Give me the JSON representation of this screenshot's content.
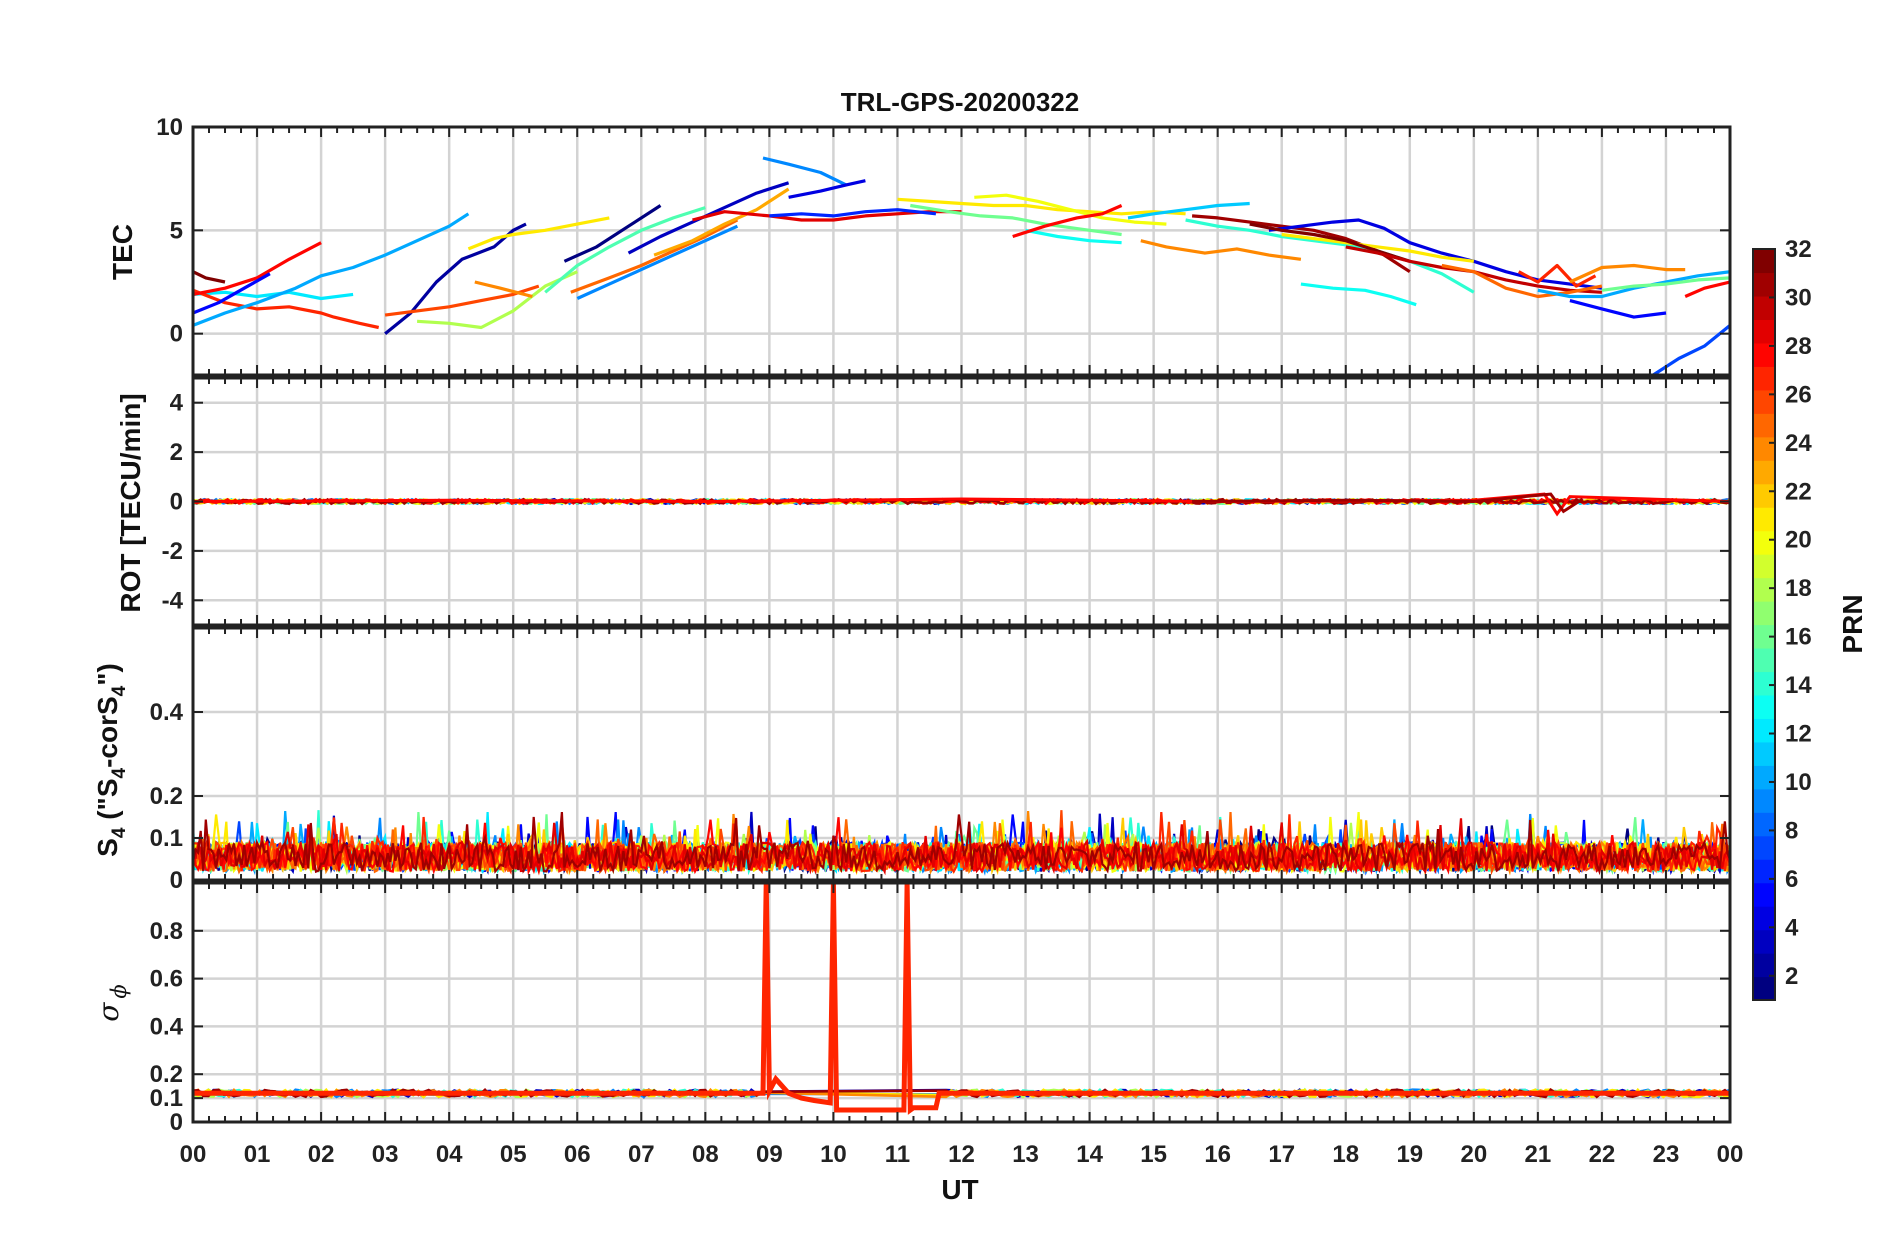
{
  "chart_data": {
    "title": "TRL-GPS-20200322",
    "xlabel": "UT",
    "x_tick_labels": [
      "00",
      "01",
      "02",
      "03",
      "04",
      "05",
      "06",
      "07",
      "08",
      "09",
      "10",
      "11",
      "12",
      "13",
      "14",
      "15",
      "16",
      "17",
      "18",
      "19",
      "20",
      "21",
      "22",
      "23",
      "00"
    ],
    "xlim": [
      0,
      24
    ],
    "colorbar": {
      "label": "PRN",
      "colormap": "jet",
      "range": [
        1,
        32
      ],
      "tick_labels": [
        "2",
        "4",
        "6",
        "8",
        "10",
        "12",
        "14",
        "16",
        "18",
        "20",
        "22",
        "24",
        "26",
        "28",
        "30",
        "32"
      ]
    },
    "panels": [
      {
        "type": "line",
        "ylabel": "TEC",
        "ylim": [
          -2,
          10
        ],
        "yticks": [
          0,
          5,
          10
        ],
        "series": [
          {
            "prn": 12,
            "x": [
              0.0,
              0.5,
              1.0,
              1.5,
              2.0,
              2.5
            ],
            "y": [
              1.9,
              2.0,
              1.8,
              2.0,
              1.7,
              1.9
            ]
          },
          {
            "prn": 27,
            "x": [
              0.0,
              0.5,
              1.0,
              1.5,
              2.0,
              2.2,
              2.6,
              2.9
            ],
            "y": [
              2.1,
              1.5,
              1.2,
              1.3,
              1.0,
              0.8,
              0.5,
              0.3
            ]
          },
          {
            "prn": 28,
            "x": [
              0.0,
              0.5,
              1.0,
              1.5,
              2.0
            ],
            "y": [
              1.9,
              2.2,
              2.7,
              3.6,
              4.4
            ]
          },
          {
            "prn": 10,
            "x": [
              0.0,
              0.5,
              1.0,
              1.6,
              2.0,
              2.5,
              3.0,
              3.5,
              4.0,
              4.3
            ],
            "y": [
              0.4,
              1.0,
              1.5,
              2.2,
              2.8,
              3.2,
              3.8,
              4.5,
              5.2,
              5.8
            ]
          },
          {
            "prn": 5,
            "x": [
              0.0,
              0.4,
              0.8,
              1.2
            ],
            "y": [
              1.0,
              1.5,
              2.2,
              2.9
            ]
          },
          {
            "prn": 32,
            "x": [
              0.0,
              0.2,
              0.5
            ],
            "y": [
              3.0,
              2.7,
              2.5
            ]
          },
          {
            "prn": 2,
            "x": [
              3.0,
              3.4,
              3.8,
              4.2,
              4.7,
              5.0,
              5.2
            ],
            "y": [
              0.0,
              1.0,
              2.5,
              3.6,
              4.2,
              5.0,
              5.3
            ]
          },
          {
            "prn": 26,
            "x": [
              3.0,
              3.5,
              4.0,
              4.5,
              5.0,
              5.4
            ],
            "y": [
              0.9,
              1.1,
              1.3,
              1.6,
              1.9,
              2.3
            ]
          },
          {
            "prn": 18,
            "x": [
              3.5,
              4.0,
              4.5,
              5.0,
              5.5,
              6.0
            ],
            "y": [
              0.6,
              0.5,
              0.3,
              1.1,
              2.3,
              3.0
            ]
          },
          {
            "prn": 21,
            "x": [
              4.3,
              4.7,
              5.0,
              5.5,
              6.0,
              6.5
            ],
            "y": [
              4.1,
              4.6,
              4.8,
              5.0,
              5.3,
              5.6
            ]
          },
          {
            "prn": 24,
            "x": [
              4.4,
              4.8,
              5.3
            ],
            "y": [
              2.5,
              2.2,
              1.8
            ]
          },
          {
            "prn": 15,
            "x": [
              5.5,
              6.0,
              6.5,
              7.0,
              7.5,
              8.0
            ],
            "y": [
              2.0,
              3.3,
              4.2,
              5.0,
              5.6,
              6.1
            ]
          },
          {
            "prn": 1,
            "x": [
              5.8,
              6.3,
              6.8,
              7.3
            ],
            "y": [
              3.5,
              4.2,
              5.2,
              6.2
            ]
          },
          {
            "prn": 25,
            "x": [
              5.9,
              6.5,
              7.0,
              7.5,
              8.0,
              8.5
            ],
            "y": [
              2.0,
              2.7,
              3.3,
              4.0,
              4.7,
              5.5
            ]
          },
          {
            "prn": 9,
            "x": [
              6.0,
              6.5,
              7.0,
              7.5,
              8.0,
              8.5
            ],
            "y": [
              1.7,
              2.4,
              3.1,
              3.8,
              4.5,
              5.2
            ]
          },
          {
            "prn": 3,
            "x": [
              6.8,
              7.3,
              7.8,
              8.3,
              8.8,
              9.3
            ],
            "y": [
              3.9,
              4.7,
              5.4,
              6.1,
              6.8,
              7.3
            ]
          },
          {
            "prn": 23,
            "x": [
              7.2,
              7.8,
              8.3,
              8.8,
              9.3
            ],
            "y": [
              3.8,
              4.5,
              5.3,
              6.0,
              7.0
            ]
          },
          {
            "prn": 29,
            "x": [
              7.8,
              8.3,
              9.0,
              9.5,
              10.0,
              10.5,
              11.0,
              11.5,
              12.0
            ],
            "y": [
              5.5,
              5.9,
              5.7,
              5.5,
              5.5,
              5.7,
              5.8,
              5.9,
              5.9
            ]
          },
          {
            "prn": 9,
            "x": [
              8.9,
              9.3,
              9.8,
              10.2
            ],
            "y": [
              8.5,
              8.2,
              7.8,
              7.2
            ]
          },
          {
            "prn": 4,
            "x": [
              9.3,
              9.8,
              10.2,
              10.5
            ],
            "y": [
              6.6,
              6.9,
              7.2,
              7.4
            ]
          },
          {
            "prn": 6,
            "x": [
              9.0,
              9.5,
              10.0,
              10.5,
              11.0,
              11.6
            ],
            "y": [
              5.7,
              5.8,
              5.7,
              5.9,
              6.0,
              5.8
            ]
          },
          {
            "prn": 21,
            "x": [
              11.0,
              11.5,
              12.0,
              12.5,
              13.0,
              13.5,
              14.0,
              14.5,
              15.0,
              15.5
            ],
            "y": [
              6.5,
              6.4,
              6.3,
              6.2,
              6.2,
              6.0,
              5.9,
              5.8,
              5.9,
              5.8
            ]
          },
          {
            "prn": 16,
            "x": [
              11.2,
              11.8,
              12.3,
              12.8,
              13.3,
              14.0,
              14.5
            ],
            "y": [
              6.2,
              5.9,
              5.7,
              5.6,
              5.3,
              5.0,
              4.8
            ]
          },
          {
            "prn": 20,
            "x": [
              12.2,
              12.7,
              13.2,
              13.7,
              14.2,
              14.7,
              15.2
            ],
            "y": [
              6.6,
              6.7,
              6.4,
              6.0,
              5.6,
              5.4,
              5.3
            ]
          },
          {
            "prn": 13,
            "x": [
              13.0,
              13.5,
              14.0,
              14.5
            ],
            "y": [
              5.0,
              4.7,
              4.5,
              4.4
            ]
          },
          {
            "prn": 28,
            "x": [
              12.8,
              13.3,
              13.8,
              14.2,
              14.5
            ],
            "y": [
              4.7,
              5.2,
              5.6,
              5.8,
              6.2
            ]
          },
          {
            "prn": 11,
            "x": [
              14.6,
              15.0,
              15.5,
              16.0,
              16.5
            ],
            "y": [
              5.6,
              5.8,
              6.0,
              6.2,
              6.3
            ]
          },
          {
            "prn": 24,
            "x": [
              14.8,
              15.2,
              15.8,
              16.3,
              16.8,
              17.3
            ],
            "y": [
              4.5,
              4.2,
              3.9,
              4.1,
              3.8,
              3.6
            ]
          },
          {
            "prn": 31,
            "x": [
              15.6,
              16.0,
              16.5,
              17.0,
              17.5,
              18.0,
              18.5,
              19.0
            ],
            "y": [
              5.7,
              5.6,
              5.4,
              5.2,
              5.0,
              4.6,
              4.0,
              3.0
            ]
          },
          {
            "prn": 14,
            "x": [
              15.5,
              16.0,
              16.5,
              17.0,
              17.5,
              18.0,
              18.5,
              19.0,
              19.5,
              20.0
            ],
            "y": [
              5.5,
              5.2,
              5.0,
              4.7,
              4.5,
              4.3,
              4.0,
              3.5,
              2.9,
              2.0
            ]
          },
          {
            "prn": 4,
            "x": [
              16.8,
              17.3,
              17.8,
              18.2,
              18.6,
              19.0,
              19.5,
              20.0,
              20.5,
              21.0,
              21.5,
              22.0
            ],
            "y": [
              5.0,
              5.2,
              5.4,
              5.5,
              5.1,
              4.4,
              3.9,
              3.5,
              3.0,
              2.6,
              2.4,
              2.2
            ]
          },
          {
            "prn": 21,
            "x": [
              17.0,
              17.5,
              18.0,
              18.5,
              19.0,
              19.5,
              20.0
            ],
            "y": [
              4.8,
              4.6,
              4.4,
              4.2,
              4.0,
              3.7,
              3.5
            ]
          },
          {
            "prn": 32,
            "x": [
              16.5,
              17.0,
              17.5,
              18.0,
              18.5,
              19.0
            ],
            "y": [
              5.3,
              5.0,
              4.8,
              4.5,
              4.0,
              3.5
            ]
          },
          {
            "prn": 13,
            "x": [
              17.3,
              17.8,
              18.3,
              18.7,
              19.1
            ],
            "y": [
              2.4,
              2.2,
              2.1,
              1.8,
              1.4
            ]
          },
          {
            "prn": 30,
            "x": [
              18.0,
              18.5,
              19.0,
              19.5,
              20.0,
              20.5,
              21.0,
              21.5,
              22.0
            ],
            "y": [
              4.2,
              3.9,
              3.5,
              3.2,
              3.0,
              2.6,
              2.3,
              2.1,
              2.0
            ]
          },
          {
            "prn": 25,
            "x": [
              19.5,
              20.0,
              20.5,
              21.0,
              21.5,
              22.0
            ],
            "y": [
              3.3,
              3.0,
              2.2,
              1.8,
              2.0,
              2.3
            ]
          },
          {
            "prn": 27,
            "x": [
              20.7,
              21.0,
              21.3,
              21.6,
              21.9
            ],
            "y": [
              3.0,
              2.5,
              3.3,
              2.3,
              2.8
            ]
          },
          {
            "prn": 5,
            "x": [
              21.5,
              22.0,
              22.5,
              23.0
            ],
            "y": [
              1.6,
              1.2,
              0.8,
              1.0
            ]
          },
          {
            "prn": 10,
            "x": [
              21.0,
              21.5,
              22.0,
              22.5,
              23.0,
              23.5,
              24.0
            ],
            "y": [
              2.1,
              1.8,
              1.8,
              2.2,
              2.5,
              2.8,
              3.0
            ]
          },
          {
            "prn": 24,
            "x": [
              21.5,
              22.0,
              22.5,
              23.0,
              23.3
            ],
            "y": [
              2.5,
              3.2,
              3.3,
              3.1,
              3.1
            ]
          },
          {
            "prn": 16,
            "x": [
              22.0,
              22.5,
              23.0,
              23.5,
              24.0
            ],
            "y": [
              2.1,
              2.3,
              2.4,
              2.6,
              2.7
            ]
          },
          {
            "prn": 28,
            "x": [
              23.3,
              23.6,
              24.0
            ],
            "y": [
              1.8,
              2.2,
              2.5
            ]
          },
          {
            "prn": 7,
            "x": [
              22.8,
              23.2,
              23.6,
              24.0
            ],
            "y": [
              -2.0,
              -1.2,
              -0.6,
              0.4
            ]
          }
        ]
      },
      {
        "type": "line",
        "ylabel": "ROT [TECU/min]",
        "ylim": [
          -5,
          5
        ],
        "yticks": [
          -4,
          -2,
          0,
          2,
          4
        ],
        "description_note": "all satellites near 0 TECU/min, small spike near 21.3 UT",
        "series": [
          {
            "prn": 28,
            "x": [
              0,
              4,
              8,
              12,
              16,
              20,
              21.1,
              21.3,
              21.5,
              24
            ],
            "y": [
              0.0,
              0.05,
              0.0,
              0.1,
              0.0,
              0.05,
              0.3,
              -0.5,
              0.2,
              0.0
            ]
          },
          {
            "prn": 31,
            "x": [
              15.6,
              18,
              20,
              21.2,
              21.4,
              21.7
            ],
            "y": [
              0.0,
              0.05,
              0.0,
              0.3,
              -0.4,
              0.1
            ]
          }
        ]
      },
      {
        "type": "line",
        "ylabel": "S4 (\"S4-corS4\")",
        "ylim": [
          0,
          0.6
        ],
        "yticks": [
          0,
          0.1,
          0.2,
          0.4
        ],
        "description_note": "dense noisy traces from all PRNs between 0 and about 0.15, occasional peaks to 0.19"
      },
      {
        "type": "line",
        "ylabel": "sigma_phi",
        "ylim": [
          0,
          1
        ],
        "yticks": [
          0,
          0.1,
          0.2,
          0.4,
          0.6,
          0.8
        ],
        "series": [
          {
            "prn": 27,
            "x": [
              0,
              8.9,
              8.95,
              9.0,
              9.1,
              9.3,
              9.5,
              9.7,
              9.95,
              10.0,
              10.05,
              10.6,
              11.1,
              11.15,
              11.2,
              11.25,
              11.6,
              11.65,
              12,
              24
            ],
            "y": [
              0.12,
              0.12,
              1.0,
              0.13,
              0.18,
              0.12,
              0.1,
              0.09,
              0.08,
              1.0,
              0.05,
              0.05,
              0.05,
              1.0,
              0.05,
              0.06,
              0.06,
              0.12,
              0.12,
              0.12
            ]
          }
        ]
      }
    ]
  }
}
